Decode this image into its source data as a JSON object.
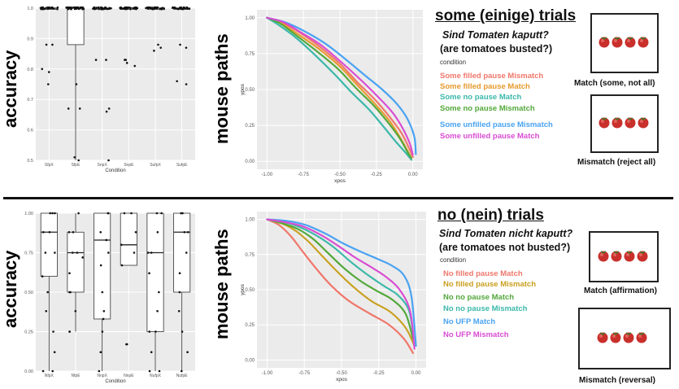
{
  "top": {
    "accuracy_label": "accuracy",
    "paths_label": "mouse paths",
    "title": "some (einige) trials",
    "question_de": "Sind Tomaten kaputt?",
    "question_en": "(are tomatoes busted?)",
    "condition_label": "condition",
    "legend": [
      {
        "label": "Some filled pause Mismatch",
        "color": "#f0776b"
      },
      {
        "label": "Some filled pause Match",
        "color": "#e69a2e"
      },
      {
        "label": "Some no pause Match",
        "color": "#3bb8a9"
      },
      {
        "label": "Some no pause Mismatch",
        "color": "#52a83a"
      },
      {
        "label": "Some unfilled pause Mismatch",
        "color": "#4aa3f2"
      },
      {
        "label": "Some unfilled pause Match",
        "color": "#d94bd3"
      }
    ],
    "match_caption": "Match (some, not all)",
    "mismatch_caption": "Mismatch (reject all)"
  },
  "bottom": {
    "accuracy_label": "accuracy",
    "paths_label": "mouse paths",
    "title": "no (nein) trials",
    "question_de": "Sind Tomaten nicht kaputt?",
    "question_en": "(are tomatoes not busted?)",
    "condition_label": "condition",
    "legend": [
      {
        "label": "No filled pause Match",
        "color": "#f0776b"
      },
      {
        "label": "No filled pause Mismatch",
        "color": "#c9a020"
      },
      {
        "label": "No no pause Match",
        "color": "#52a83a"
      },
      {
        "label": "No no pause Mismatch",
        "color": "#3bb8a9"
      },
      {
        "label": "No UFP Match",
        "color": "#4aa3f2"
      },
      {
        "label": "No UFP Mismatch",
        "color": "#d94bd3"
      }
    ],
    "match_caption": "Match (affirmation)",
    "mismatch_caption": "Mismatch (reversal)"
  },
  "chart_data": [
    {
      "id": "acc-top",
      "type": "box",
      "xlabel": "Condition",
      "categories": [
        "SfpX",
        "SfpE",
        "SnpX",
        "SnpE",
        "SufpX",
        "SufpE"
      ],
      "yticks": [
        "0.5",
        "0.6",
        "0.7",
        "0.8",
        "0.9",
        "1.0"
      ],
      "ylim": [
        0.5,
        1.0
      ],
      "boxes": [
        {
          "min": 1.0,
          "q1": 1.0,
          "median": 1.0,
          "q3": 1.0,
          "max": 1.0
        },
        {
          "min": 0.5,
          "q1": 0.88,
          "median": 1.0,
          "q3": 1.0,
          "max": 1.0
        },
        {
          "min": 1.0,
          "q1": 1.0,
          "median": 1.0,
          "q3": 1.0,
          "max": 1.0
        },
        {
          "min": 1.0,
          "q1": 1.0,
          "median": 1.0,
          "q3": 1.0,
          "max": 1.0
        },
        {
          "min": 1.0,
          "q1": 1.0,
          "median": 1.0,
          "q3": 1.0,
          "max": 1.0
        },
        {
          "min": 1.0,
          "q1": 1.0,
          "median": 1.0,
          "q3": 1.0,
          "max": 1.0
        }
      ],
      "outliers": [
        [
          0.88,
          0.88,
          0.8,
          0.79,
          0.75
        ],
        [
          0.75,
          0.67,
          0.67,
          0.51,
          0.5
        ],
        [
          0.83,
          0.83,
          0.67,
          0.66,
          0.5
        ],
        [
          0.83,
          0.83,
          0.82,
          0.81
        ],
        [
          0.88,
          0.87,
          0.86
        ],
        [
          0.88,
          0.87,
          0.76,
          0.75
        ]
      ]
    },
    {
      "id": "paths-top",
      "type": "line",
      "xlabel": "xpos",
      "ylabel": "ypos",
      "xlim": [
        -1.0,
        0.0
      ],
      "ylim": [
        0.0,
        1.0
      ],
      "xticks": [
        "-1.00",
        "-0.75",
        "-0.50",
        "-0.25",
        "0.00"
      ],
      "yticks": [
        "0.00",
        "0.25",
        "0.50",
        "0.75",
        "1.00"
      ],
      "series": [
        {
          "name": "Some filled pause Mismatch",
          "x": [
            -1.0,
            -0.9,
            -0.78,
            -0.64,
            -0.5,
            -0.38,
            -0.26,
            -0.16,
            -0.08,
            -0.03,
            0.0
          ],
          "y": [
            1.0,
            0.97,
            0.9,
            0.8,
            0.68,
            0.55,
            0.43,
            0.31,
            0.2,
            0.1,
            0.03
          ]
        },
        {
          "name": "Some filled pause Match",
          "x": [
            -1.0,
            -0.9,
            -0.78,
            -0.64,
            -0.5,
            -0.38,
            -0.26,
            -0.16,
            -0.09,
            -0.04,
            -0.01
          ],
          "y": [
            1.0,
            0.96,
            0.88,
            0.78,
            0.66,
            0.53,
            0.4,
            0.28,
            0.17,
            0.08,
            0.02
          ]
        },
        {
          "name": "Some no pause Match",
          "x": [
            -1.0,
            -0.92,
            -0.8,
            -0.67,
            -0.54,
            -0.42,
            -0.3,
            -0.2,
            -0.12,
            -0.05,
            -0.01
          ],
          "y": [
            1.0,
            0.95,
            0.86,
            0.74,
            0.61,
            0.48,
            0.36,
            0.24,
            0.14,
            0.06,
            0.01
          ]
        },
        {
          "name": "Some no pause Mismatch",
          "x": [
            -1.0,
            -0.91,
            -0.79,
            -0.65,
            -0.51,
            -0.39,
            -0.27,
            -0.17,
            -0.09,
            -0.04,
            -0.01
          ],
          "y": [
            1.0,
            0.96,
            0.87,
            0.76,
            0.64,
            0.51,
            0.39,
            0.27,
            0.16,
            0.07,
            0.02
          ]
        },
        {
          "name": "Some unfilled pause Mismatch",
          "x": [
            -1.0,
            -0.88,
            -0.75,
            -0.6,
            -0.46,
            -0.33,
            -0.21,
            -0.11,
            -0.04,
            0.01,
            0.02
          ],
          "y": [
            1.0,
            0.97,
            0.91,
            0.82,
            0.71,
            0.6,
            0.5,
            0.4,
            0.3,
            0.17,
            0.05
          ]
        },
        {
          "name": "Some unfilled pause Match",
          "x": [
            -1.0,
            -0.89,
            -0.77,
            -0.63,
            -0.49,
            -0.36,
            -0.24,
            -0.14,
            -0.07,
            -0.02,
            0.0
          ],
          "y": [
            1.0,
            0.97,
            0.9,
            0.81,
            0.69,
            0.57,
            0.45,
            0.34,
            0.23,
            0.12,
            0.04
          ]
        }
      ]
    },
    {
      "id": "acc-bottom",
      "type": "box",
      "xlabel": "Condition",
      "categories": [
        "NfpX",
        "NfpE",
        "NnpX",
        "NnpE",
        "NufpX",
        "NufpE"
      ],
      "yticks": [
        "0.00",
        "0.25",
        "0.50",
        "0.75",
        "1.00"
      ],
      "ylim": [
        0.0,
        1.0
      ],
      "boxes": [
        {
          "min": 0.0,
          "q1": 0.6,
          "median": 0.88,
          "q3": 1.0,
          "max": 1.0
        },
        {
          "min": 0.25,
          "q1": 0.5,
          "median": 0.75,
          "q3": 0.88,
          "max": 1.0
        },
        {
          "min": 0.0,
          "q1": 0.33,
          "median": 0.83,
          "q3": 1.0,
          "max": 1.0
        },
        {
          "min": 0.67,
          "q1": 0.67,
          "median": 0.8,
          "q3": 1.0,
          "max": 1.0
        },
        {
          "min": 0.0,
          "q1": 0.25,
          "median": 0.75,
          "q3": 1.0,
          "max": 1.0
        },
        {
          "min": 0.0,
          "q1": 0.5,
          "median": 0.88,
          "q3": 1.0,
          "max": 1.0
        }
      ],
      "points": [
        [
          1.0,
          1.0,
          1.0,
          0.88,
          0.88,
          0.75,
          0.75,
          0.6,
          0.5,
          0.38,
          0.25,
          0.12,
          0.0,
          0.0
        ],
        [
          1.0,
          0.88,
          0.88,
          0.75,
          0.75,
          0.72,
          0.62,
          0.5,
          0.5,
          0.38,
          0.25,
          0.25
        ],
        [
          1.0,
          1.0,
          0.88,
          0.83,
          0.75,
          0.67,
          0.5,
          0.38,
          0.33,
          0.25,
          0.12,
          0.0
        ],
        [
          1.0,
          1.0,
          0.88,
          0.8,
          0.75,
          0.67,
          0.17,
          0.17
        ],
        [
          1.0,
          1.0,
          0.88,
          0.75,
          0.75,
          0.62,
          0.5,
          0.38,
          0.25,
          0.25,
          0.12,
          0.0,
          0.0
        ],
        [
          1.0,
          1.0,
          0.88,
          0.88,
          0.75,
          0.62,
          0.5,
          0.38,
          0.25,
          0.12,
          0.0
        ]
      ]
    },
    {
      "id": "paths-bottom",
      "type": "line",
      "xlabel": "xpos",
      "ylabel": "ypos",
      "xlim": [
        -1.0,
        0.0
      ],
      "ylim": [
        0.0,
        1.0
      ],
      "xticks": [
        "-1.00",
        "-0.75",
        "-0.50",
        "-0.25",
        "0.00"
      ],
      "yticks": [
        "0.00",
        "0.25",
        "0.50",
        "0.75",
        "1.00"
      ],
      "series": [
        {
          "name": "No filled pause Match",
          "x": [
            -1.0,
            -0.92,
            -0.84,
            -0.76,
            -0.67,
            -0.57,
            -0.45,
            -0.31,
            -0.18,
            -0.08,
            -0.02
          ],
          "y": [
            1.0,
            0.96,
            0.88,
            0.77,
            0.65,
            0.53,
            0.42,
            0.33,
            0.25,
            0.15,
            0.05
          ]
        },
        {
          "name": "No filled pause Mismatch",
          "x": [
            -1.0,
            -0.9,
            -0.81,
            -0.72,
            -0.63,
            -0.53,
            -0.42,
            -0.3,
            -0.17,
            -0.07,
            -0.01
          ],
          "y": [
            1.0,
            0.97,
            0.92,
            0.84,
            0.74,
            0.63,
            0.52,
            0.42,
            0.34,
            0.23,
            0.1
          ]
        },
        {
          "name": "No no pause Match",
          "x": [
            -1.0,
            -0.89,
            -0.79,
            -0.69,
            -0.59,
            -0.48,
            -0.37,
            -0.26,
            -0.16,
            -0.07,
            -0.02
          ],
          "y": [
            1.0,
            0.97,
            0.93,
            0.86,
            0.76,
            0.65,
            0.56,
            0.49,
            0.43,
            0.33,
            0.15
          ]
        },
        {
          "name": "No no pause Mismatch",
          "x": [
            -1.0,
            -0.88,
            -0.77,
            -0.66,
            -0.55,
            -0.44,
            -0.33,
            -0.22,
            -0.12,
            -0.05,
            -0.02
          ],
          "y": [
            1.0,
            0.98,
            0.94,
            0.88,
            0.8,
            0.7,
            0.61,
            0.53,
            0.46,
            0.36,
            0.2
          ]
        },
        {
          "name": "No UFP Match",
          "x": [
            -1.0,
            -0.87,
            -0.74,
            -0.61,
            -0.49,
            -0.37,
            -0.26,
            -0.16,
            -0.08,
            -0.03,
            0.0
          ],
          "y": [
            1.0,
            0.99,
            0.96,
            0.9,
            0.83,
            0.77,
            0.72,
            0.67,
            0.6,
            0.45,
            0.1
          ]
        },
        {
          "name": "No UFP Mismatch",
          "x": [
            -1.0,
            -0.88,
            -0.76,
            -0.64,
            -0.52,
            -0.41,
            -0.3,
            -0.2,
            -0.11,
            -0.04,
            -0.01
          ],
          "y": [
            1.0,
            0.98,
            0.95,
            0.89,
            0.81,
            0.73,
            0.66,
            0.59,
            0.5,
            0.35,
            0.08
          ]
        }
      ]
    }
  ]
}
